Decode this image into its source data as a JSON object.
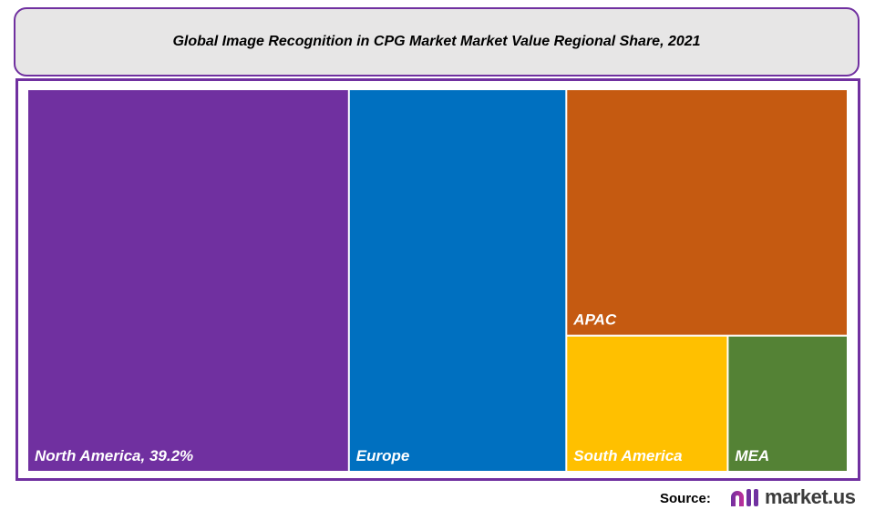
{
  "chart_data": {
    "type": "treemap",
    "title": "Global Image Recognition in CPG Market Market Value Regional Share, 2021",
    "unit": "%",
    "items": [
      {
        "name": "North America",
        "label": "North America, 39.2%",
        "value": 39.2,
        "color": "#7030a0"
      },
      {
        "name": "Europe",
        "label": "Europe",
        "value": 26.5,
        "color": "#0070c0"
      },
      {
        "name": "APAC",
        "label": "APAC",
        "value": 22.1,
        "color": "#c55a11"
      },
      {
        "name": "South America",
        "label": "South America",
        "value": 7.0,
        "color": "#ffc000"
      },
      {
        "name": "MEA",
        "label": "MEA",
        "value": 5.2,
        "color": "#548235"
      }
    ]
  },
  "footer": {
    "source_label": "Source:",
    "brand": "market.us"
  },
  "colors": {
    "border": "#7030a0",
    "title_bg": "#e7e6e6"
  }
}
